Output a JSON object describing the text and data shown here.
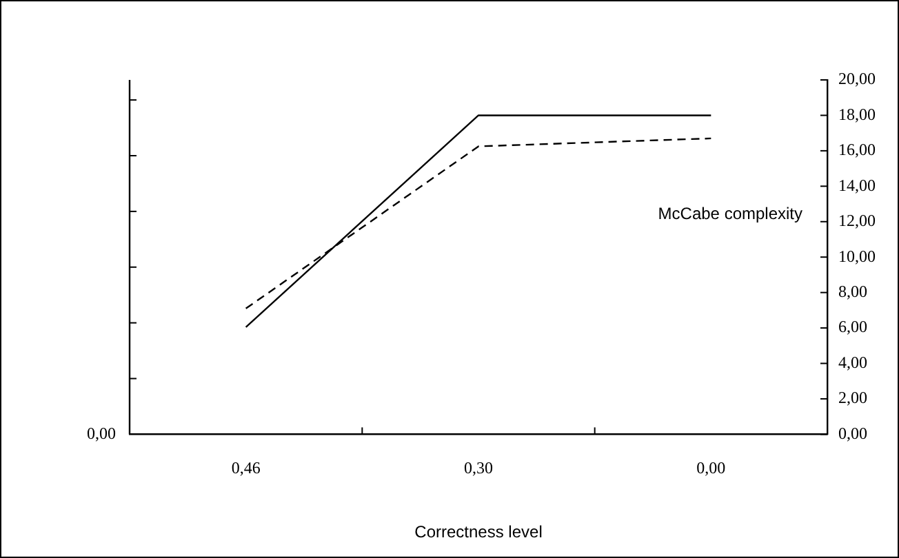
{
  "chart_data": {
    "type": "line",
    "xlabel": "Correctness level",
    "y2label": "McCabe complexity",
    "annotations": [
      "0,00"
    ],
    "categories": [
      "0,46",
      "0,30",
      "0,00"
    ],
    "series": [
      {
        "color": "#000000",
        "values": [
          6.05,
          18,
          18
        ],
        "axis": "y2",
        "line_style": "solid"
      },
      {
        "color": "#000000",
        "values": [
          7.1,
          16.25,
          16.7
        ],
        "axis": "y2",
        "line_style": "dashed"
      }
    ],
    "y2lim": [
      0,
      20
    ],
    "y2ticks": [
      {
        "value": 0,
        "label": "0,00"
      },
      {
        "value": 2,
        "label": "2,00"
      },
      {
        "value": 4,
        "label": "4,00"
      },
      {
        "value": 6,
        "label": "6,00"
      },
      {
        "value": 8,
        "label": "8,00"
      },
      {
        "value": 10,
        "label": "10,00"
      },
      {
        "value": 12,
        "label": "12,00"
      },
      {
        "value": 14,
        "label": "14,00"
      },
      {
        "value": 16,
        "label": "16,00"
      },
      {
        "value": 18,
        "label": "18,00"
      },
      {
        "value": 20,
        "label": "20,00"
      }
    ],
    "grid": false,
    "legend": false,
    "marker": "none"
  }
}
